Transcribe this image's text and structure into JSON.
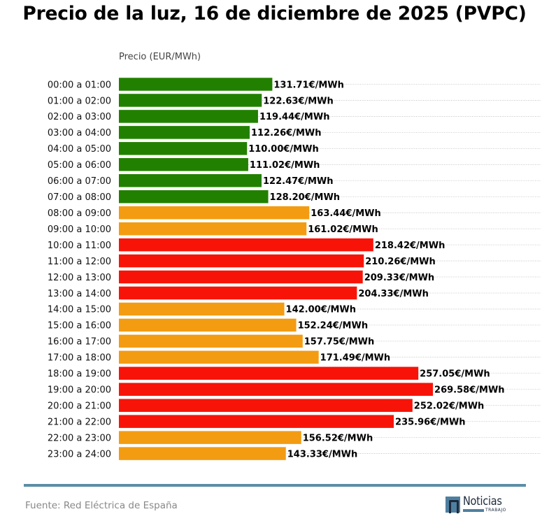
{
  "chart_data": {
    "type": "bar",
    "orientation": "horizontal",
    "title": "Precio de la luz, 16 de diciembre de 2025 (PVPC)",
    "xlabel": "Precio (EUR/MWh)",
    "ylabel": "",
    "value_suffix": "€/MWh",
    "grid": true,
    "xlim": [
      0,
      362
    ],
    "colors": {
      "low": "#228000",
      "mid": "#f39c12",
      "high": "#f81308"
    },
    "categories": [
      "00:00 a 01:00",
      "01:00 a 02:00",
      "02:00 a 03:00",
      "03:00 a 04:00",
      "04:00 a 05:00",
      "05:00 a 06:00",
      "06:00 a 07:00",
      "07:00 a 08:00",
      "08:00 a 09:00",
      "09:00 a 10:00",
      "10:00 a 11:00",
      "11:00 a 12:00",
      "12:00 a 13:00",
      "13:00 a 14:00",
      "14:00 a 15:00",
      "15:00 a 16:00",
      "16:00 a 17:00",
      "17:00 a 18:00",
      "18:00 a 19:00",
      "19:00 a 20:00",
      "20:00 a 21:00",
      "21:00 a 22:00",
      "22:00 a 23:00",
      "23:00 a 24:00"
    ],
    "values": [
      131.71,
      122.63,
      119.44,
      112.26,
      110.0,
      111.02,
      122.47,
      128.2,
      163.44,
      161.02,
      218.42,
      210.26,
      209.33,
      204.33,
      142.0,
      152.24,
      157.75,
      171.49,
      257.05,
      269.58,
      252.02,
      235.96,
      156.52,
      143.33
    ],
    "levels": [
      "low",
      "low",
      "low",
      "low",
      "low",
      "low",
      "low",
      "low",
      "mid",
      "mid",
      "high",
      "high",
      "high",
      "high",
      "mid",
      "mid",
      "mid",
      "mid",
      "high",
      "high",
      "high",
      "high",
      "mid",
      "mid"
    ]
  },
  "footer": {
    "source": "Fuente: Red Eléctrica de España",
    "logo_word": "Noticias",
    "logo_sub": "TRABAJO"
  }
}
